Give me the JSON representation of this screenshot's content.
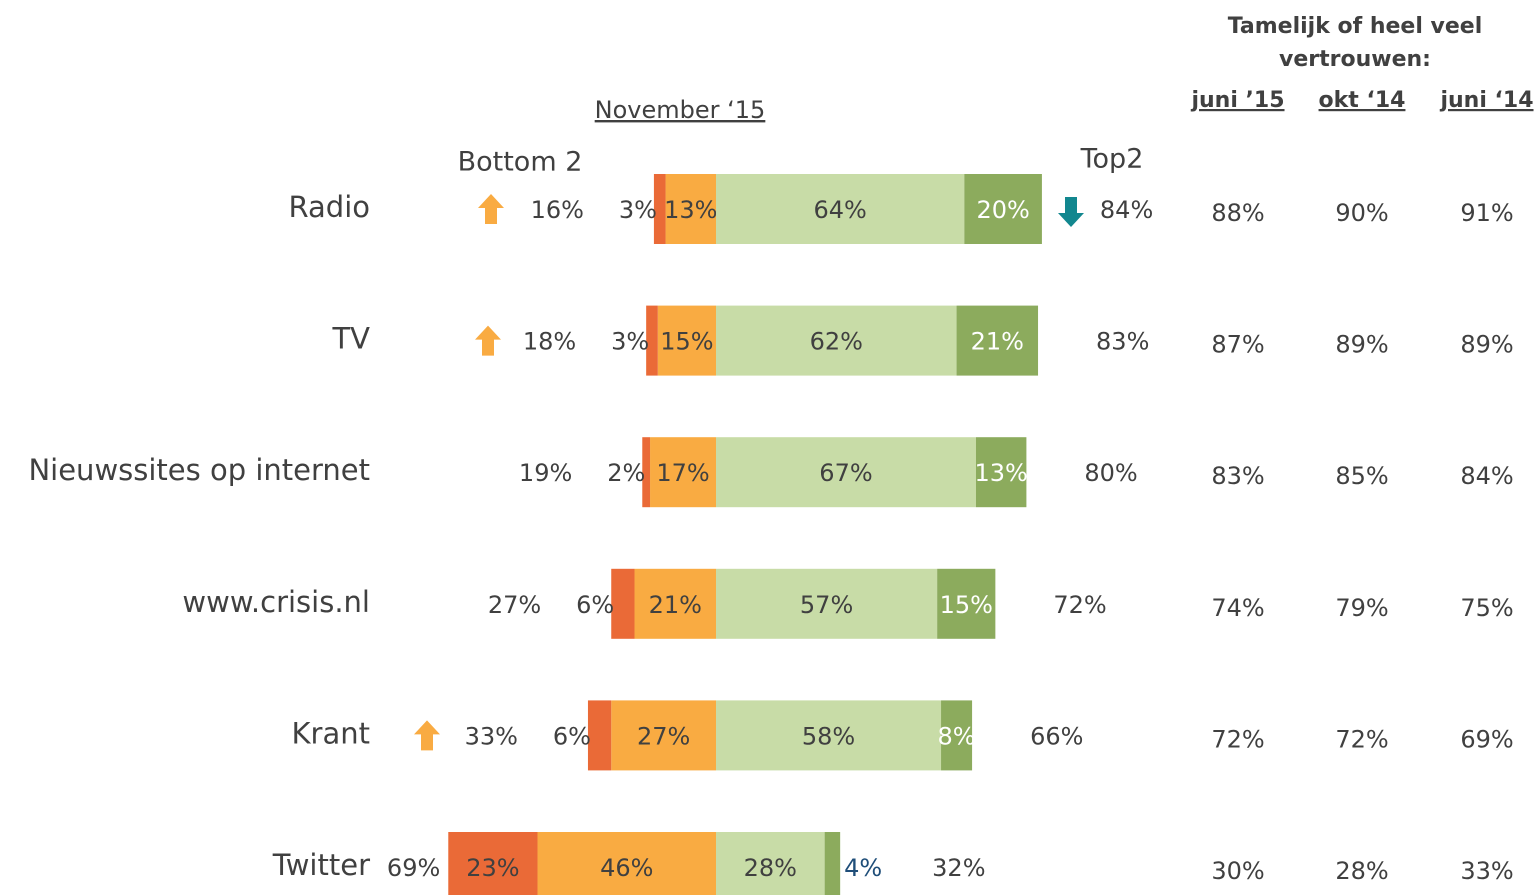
{
  "chart_data": {
    "type": "diverging-bar",
    "subtitle": "November ‘15",
    "categories": [
      "Radio",
      "TV",
      "Nieuwssites op internet",
      "www.crisis.nl",
      "Krant",
      "Twitter"
    ],
    "series": [
      {
        "color": "#ea6a37",
        "side": "negative",
        "values": [
          3,
          3,
          2,
          6,
          6,
          23
        ],
        "value_labels": [
          "3%",
          "3%",
          "2%",
          "6%",
          "6%",
          "23%"
        ]
      },
      {
        "color": "#f9ab42",
        "side": "negative",
        "values": [
          13,
          15,
          17,
          21,
          27,
          46
        ],
        "value_labels": [
          "13%",
          "15%",
          "17%",
          "21%",
          "27%",
          "46%"
        ]
      },
      {
        "color": "#c8dca7",
        "side": "positive",
        "values": [
          64,
          62,
          67,
          57,
          58,
          28
        ],
        "value_labels": [
          "64%",
          "62%",
          "67%",
          "57%",
          "58%",
          "28%"
        ]
      },
      {
        "color": "#8cab5d",
        "side": "positive",
        "values": [
          20,
          21,
          13,
          15,
          8,
          4
        ],
        "value_labels": [
          "20%",
          "21%",
          "13%",
          "15%",
          "8%",
          "4%"
        ]
      }
    ],
    "bottom2": {
      "title": "Bottom 2",
      "values": [
        16,
        18,
        19,
        27,
        33,
        69
      ],
      "value_labels": [
        "16%",
        "18%",
        "19%",
        "27%",
        "33%",
        "69%"
      ]
    },
    "top2": {
      "title": "Top2",
      "values": [
        84,
        83,
        80,
        72,
        66,
        32
      ],
      "value_labels": [
        "84%",
        "83%",
        "80%",
        "72%",
        "66%",
        "32%"
      ]
    }
  },
  "comparison": {
    "title": "Tamelijk of heel veel vertrouwen:",
    "columns": [
      {
        "label": "juni ’15",
        "values": [
          88,
          87,
          83,
          74,
          72,
          30
        ],
        "value_labels": [
          "88%",
          "87%",
          "83%",
          "74%",
          "72%",
          "30%"
        ]
      },
      {
        "label": "okt ‘14",
        "values": [
          90,
          89,
          85,
          79,
          72,
          28
        ],
        "value_labels": [
          "90%",
          "89%",
          "85%",
          "79%",
          "72%",
          "28%"
        ]
      },
      {
        "label": "juni ‘14",
        "values": [
          91,
          89,
          84,
          75,
          69,
          33
        ],
        "value_labels": [
          "91%",
          "89%",
          "84%",
          "75%",
          "69%",
          "33%"
        ]
      }
    ]
  }
}
